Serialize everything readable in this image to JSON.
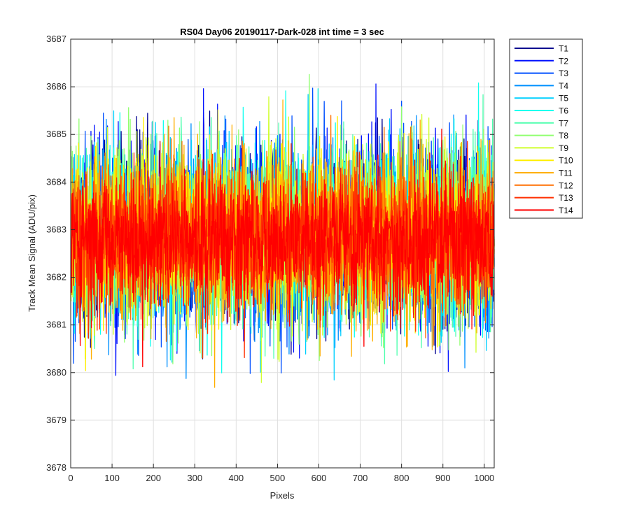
{
  "chart_data": {
    "type": "line",
    "title": "RS04 Day06 20190117-Dark-028 int time = 3 sec",
    "xlabel": "Pixels",
    "ylabel": "Track Mean Signal (ADU/pix)",
    "xlim": [
      0,
      1024
    ],
    "ylim": [
      3678,
      3687
    ],
    "xticks": [
      0,
      100,
      200,
      300,
      400,
      500,
      600,
      700,
      800,
      900,
      1000
    ],
    "yticks": [
      3678,
      3679,
      3680,
      3681,
      3682,
      3683,
      3684,
      3685,
      3686,
      3687
    ],
    "grid": true,
    "legend_position": "outside-top-right",
    "series": [
      {
        "name": "T1",
        "color": "#00008f",
        "mean": 3682.9,
        "sd": 0.95,
        "min": 3679.9,
        "max": 3686.8
      },
      {
        "name": "T2",
        "color": "#0010ff",
        "mean": 3682.9,
        "sd": 0.95,
        "min": 3679.6,
        "max": 3686.5
      },
      {
        "name": "T3",
        "color": "#0050ff",
        "mean": 3682.9,
        "sd": 0.95,
        "min": 3679.8,
        "max": 3686.2
      },
      {
        "name": "T4",
        "color": "#0090ff",
        "mean": 3682.9,
        "sd": 0.95,
        "min": 3679.8,
        "max": 3686.7
      },
      {
        "name": "T5",
        "color": "#00d0ff",
        "mean": 3682.9,
        "sd": 0.9,
        "min": 3679.5,
        "max": 3686.3
      },
      {
        "name": "T6",
        "color": "#10ffef",
        "mean": 3682.9,
        "sd": 0.9,
        "min": 3679.8,
        "max": 3686.4
      },
      {
        "name": "T7",
        "color": "#50ffaf",
        "mean": 3682.9,
        "sd": 0.9,
        "min": 3679.9,
        "max": 3686.2
      },
      {
        "name": "T8",
        "color": "#90ff6f",
        "mean": 3682.9,
        "sd": 0.9,
        "min": 3679.4,
        "max": 3686.3
      },
      {
        "name": "T9",
        "color": "#d0ff2f",
        "mean": 3682.9,
        "sd": 0.9,
        "min": 3679.6,
        "max": 3686.1
      },
      {
        "name": "T10",
        "color": "#ffef00",
        "mean": 3682.9,
        "sd": 0.85,
        "min": 3679.4,
        "max": 3686.0
      },
      {
        "name": "T11",
        "color": "#ffaf00",
        "mean": 3682.85,
        "sd": 0.85,
        "min": 3678.9,
        "max": 3686.1
      },
      {
        "name": "T12",
        "color": "#ff6f00",
        "mean": 3682.85,
        "sd": 0.8,
        "min": 3679.2,
        "max": 3685.9
      },
      {
        "name": "T13",
        "color": "#ff2f00",
        "mean": 3682.8,
        "sd": 0.75,
        "min": 3679.5,
        "max": 3685.6
      },
      {
        "name": "T14",
        "color": "#ff0000",
        "mean": 3682.75,
        "sd": 0.7,
        "min": 3678.8,
        "max": 3685.6
      }
    ]
  }
}
